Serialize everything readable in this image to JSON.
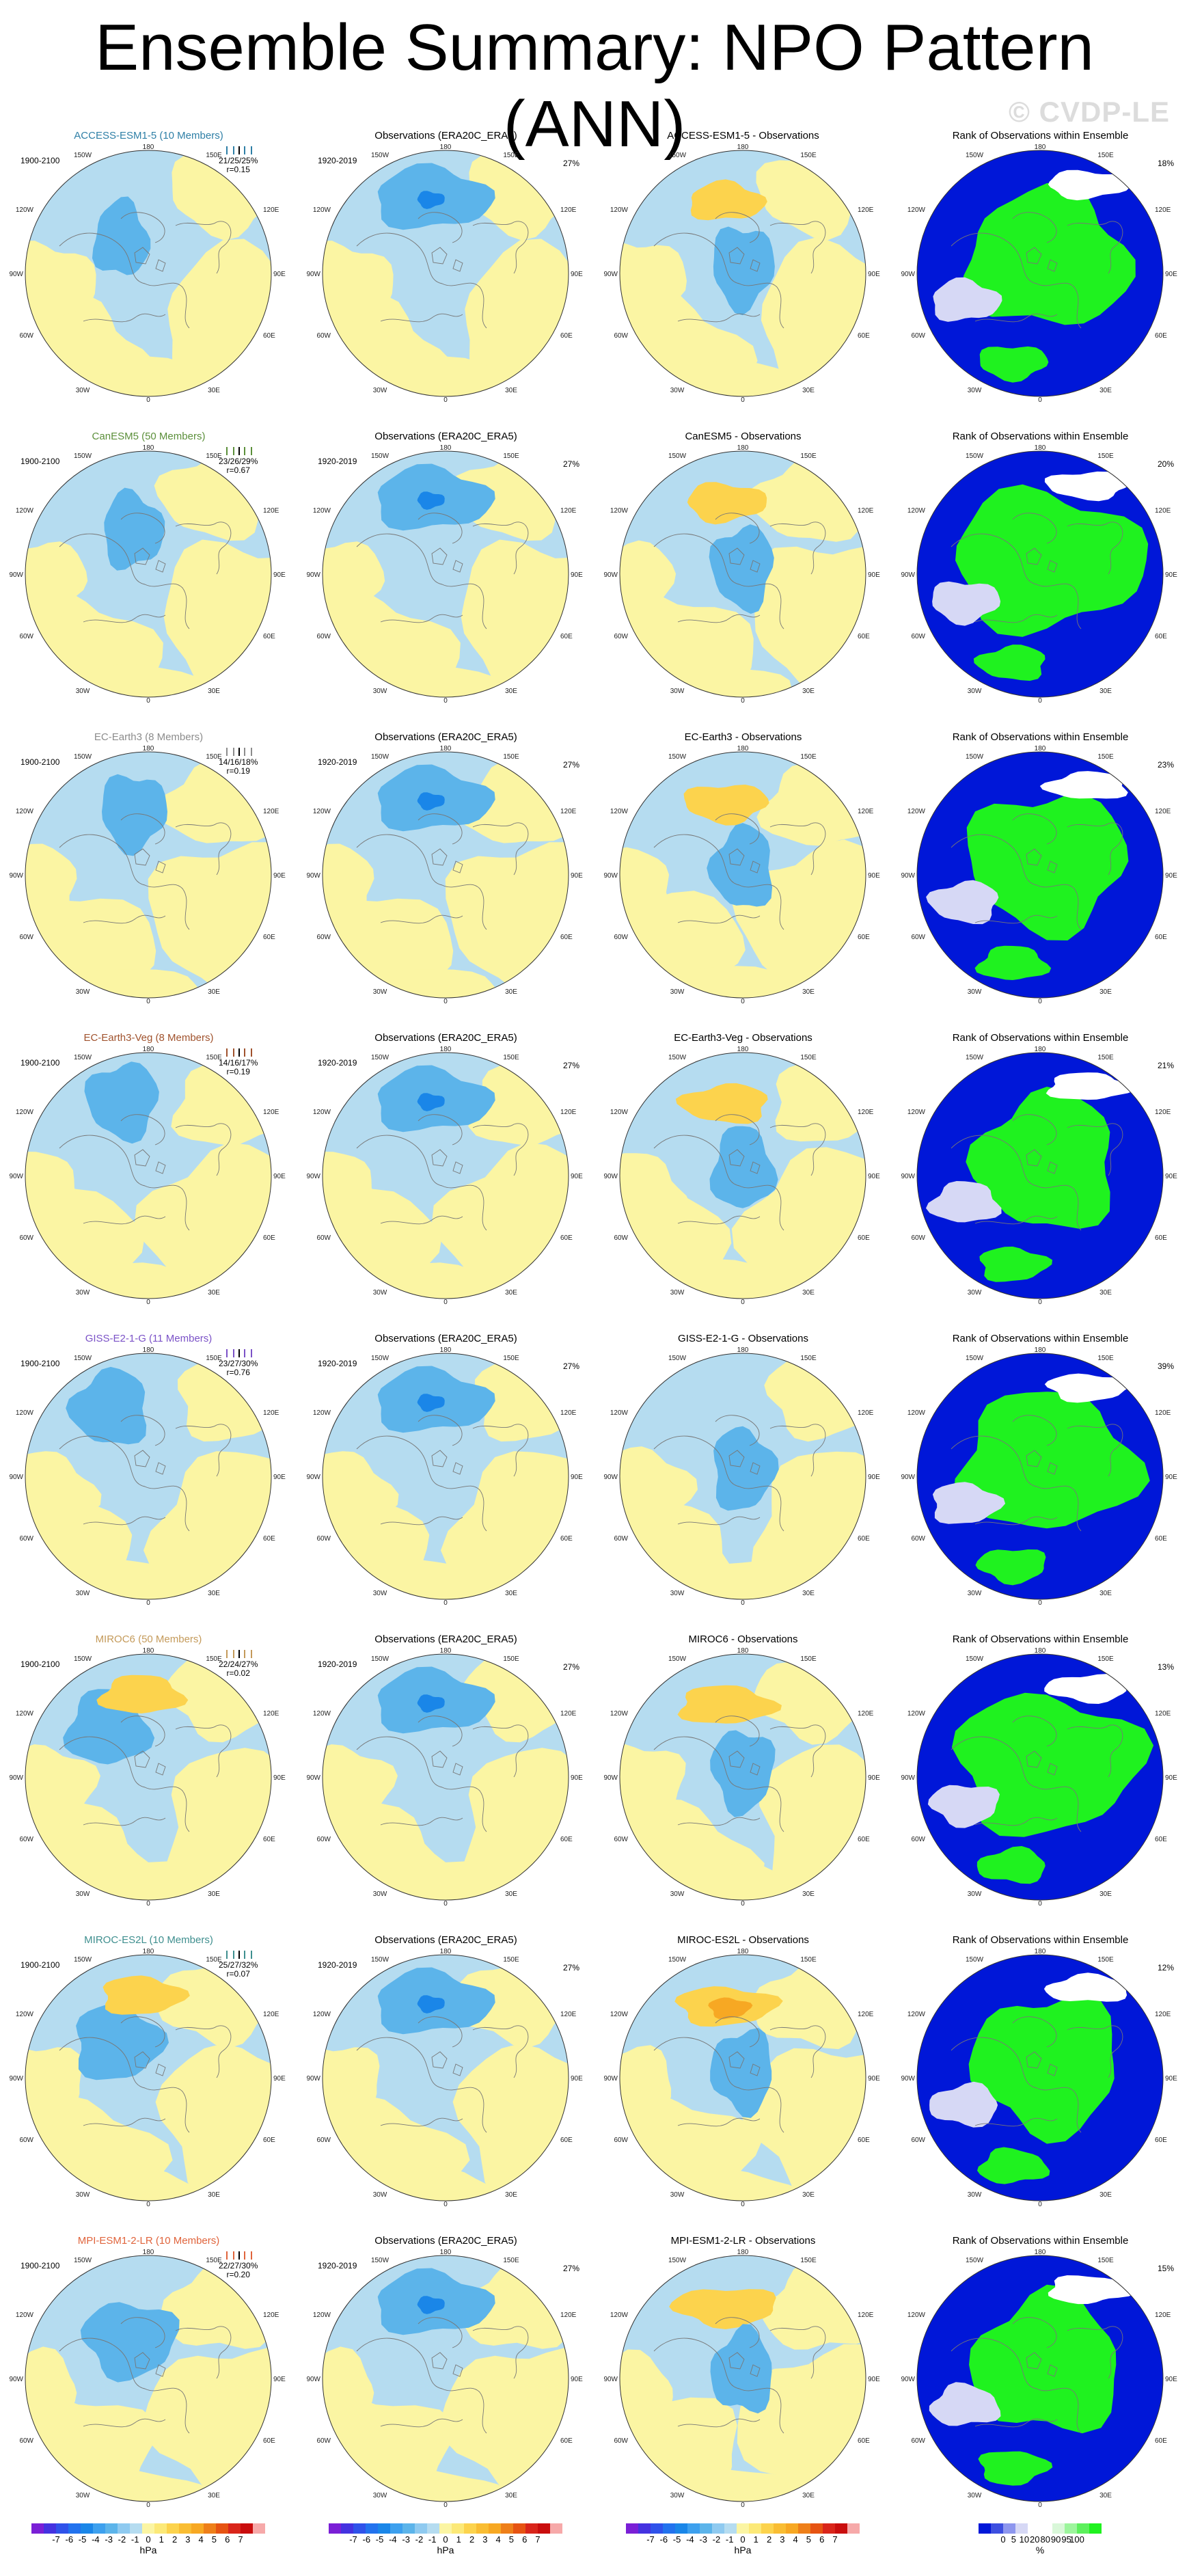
{
  "title": "Ensemble Summary: NPO Pattern (ANN)",
  "watermark": "© CVDP-LE",
  "colors": {
    "light_blue": "#b5dcf0",
    "mid_blue": "#5cb4ea",
    "deep_blue": "#1a86e8",
    "light_yellow": "#fbf5a3",
    "mid_yellow": "#fcd34d",
    "orange": "#f7a823",
    "rank_blue": "#0017d8",
    "rank_green": "#1ff21f",
    "rank_pale": "#d6d8f5",
    "coast": "#777777"
  },
  "chart_data": {
    "type": "polar-map-grid",
    "columns": [
      {
        "id": "model",
        "title_template": "{model} ({members} Members)"
      },
      {
        "id": "obs",
        "title": "Observations (ERA20C_ERA5)"
      },
      {
        "id": "diff",
        "title_template": "{model} - Observations"
      },
      {
        "id": "rank",
        "title": "Rank of Observations within Ensemble"
      }
    ],
    "lon_labels": [
      "180",
      "150W",
      "150E",
      "120W",
      "120E",
      "90W",
      "90E",
      "60W",
      "60E",
      "30W",
      "30E",
      "0"
    ],
    "model_period": "1900-2100",
    "obs_period": "1920-2019",
    "obs_pct": "27%",
    "rows": [
      {
        "model": "ACCESS-ESM1-5 (10 Members)",
        "diff_title": "ACCESS-ESM1-5 - Observations",
        "name_color": "#2e7fa6",
        "stats_line1": "21/25/25%",
        "stats_line2": "r=0.15",
        "rank_pct": "18%",
        "box_color": "#2e7fa6"
      },
      {
        "model": "CanESM5 (50 Members)",
        "diff_title": "CanESM5 - Observations",
        "name_color": "#5b8f3a",
        "stats_line1": "23/26/29%",
        "stats_line2": "r=0.67",
        "rank_pct": "20%",
        "box_color": "#5b8f3a"
      },
      {
        "model": "EC-Earth3 (8 Members)",
        "diff_title": "EC-Earth3 - Observations",
        "name_color": "#8c8c8c",
        "stats_line1": "14/16/18%",
        "stats_line2": "r=0.19",
        "rank_pct": "23%",
        "box_color": "#8c8c8c"
      },
      {
        "model": "EC-Earth3-Veg (8 Members)",
        "diff_title": "EC-Earth3-Veg - Observations",
        "name_color": "#a0522d",
        "stats_line1": "14/16/17%",
        "stats_line2": "r=0.19",
        "rank_pct": "21%",
        "box_color": "#a0522d"
      },
      {
        "model": "GISS-E2-1-G (11 Members)",
        "diff_title": "GISS-E2-1-G - Observations",
        "name_color": "#7b52c7",
        "stats_line1": "23/27/30%",
        "stats_line2": "r=0.76",
        "rank_pct": "39%",
        "box_color": "#7b52c7"
      },
      {
        "model": "MIROC6 (50 Members)",
        "diff_title": "MIROC6 - Observations",
        "name_color": "#c49a5a",
        "stats_line1": "22/24/27%",
        "stats_line2": "r=0.02",
        "rank_pct": "13%",
        "box_color": "#c49a5a"
      },
      {
        "model": "MIROC-ES2L (10 Members)",
        "diff_title": "MIROC-ES2L - Observations",
        "name_color": "#3f8f8f",
        "stats_line1": "25/27/32%",
        "stats_line2": "r=0.07",
        "rank_pct": "12%",
        "box_color": "#3f8f8f"
      },
      {
        "model": "MPI-ESM1-2-LR (10 Members)",
        "diff_title": "MPI-ESM1-2-LR - Observations",
        "name_color": "#e0643c",
        "stats_line1": "22/27/30%",
        "stats_line2": "r=0.20",
        "rank_pct": "15%",
        "box_color": "#e0643c"
      }
    ],
    "colorbar_hpa": {
      "unit": "hPa",
      "labels": [
        "-7",
        "-6",
        "-5",
        "-4",
        "-3",
        "-2",
        "-1",
        "0",
        "1",
        "2",
        "3",
        "4",
        "5",
        "6",
        "7"
      ],
      "colors": [
        "#7a1fd6",
        "#4432e0",
        "#2f52ea",
        "#2272ee",
        "#1a86e8",
        "#3da0ee",
        "#5cb4ea",
        "#8fcaf0",
        "#b5dcf0",
        "#fbf5a3",
        "#fce978",
        "#fcd34d",
        "#f9bd33",
        "#f7a823",
        "#ee7f19",
        "#e65312",
        "#d9251a",
        "#c90d0d",
        "#f6a9a9"
      ]
    },
    "colorbar_rank": {
      "unit": "%",
      "labels": [
        "0",
        "5",
        "10",
        "20",
        "80",
        "90",
        "95",
        "100"
      ],
      "colors": [
        "#0017d8",
        "#3d4fe0",
        "#8d96ee",
        "#d6d8f5",
        "#ffffff",
        "#ffffff",
        "#d9f7d9",
        "#9cf59c",
        "#5cf05c",
        "#1ff21f"
      ]
    }
  }
}
